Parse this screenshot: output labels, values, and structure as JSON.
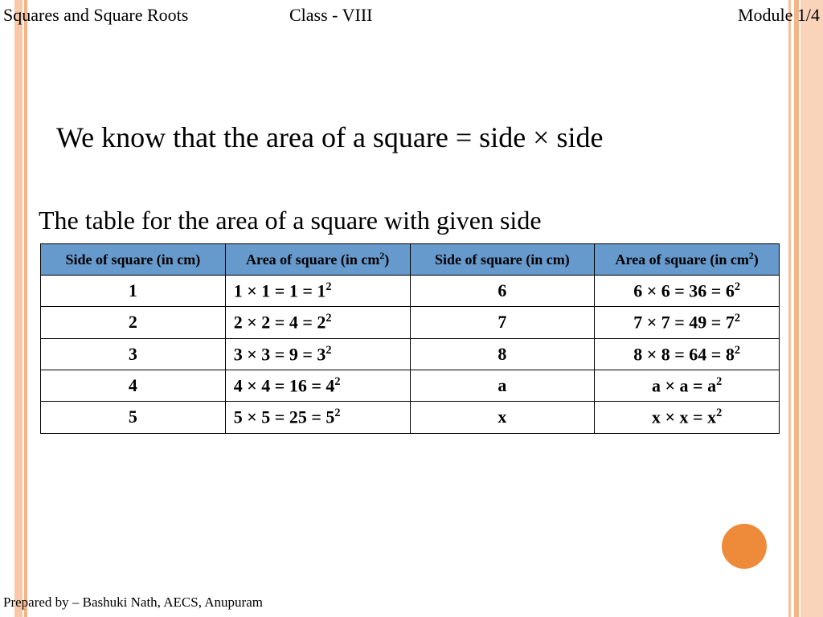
{
  "header": {
    "left": "Squares and Square Roots",
    "center": "Class - VIII",
    "right": "Module 1/4"
  },
  "main_line": "We know that the area of a square = side × side",
  "sub_line": "The table for the area of a square with given side",
  "footer": "Prepared by – Bashuki Nath, AECS, Anupuram",
  "colors": {
    "header_bg": "#6699cc",
    "stripe_light": "#f9d4bb",
    "stripe_mid": "#f8c8a8",
    "stripe_dark": "#f5b488",
    "dot": "#ed8b3a",
    "page_bg": "#ffffff",
    "text": "#000000",
    "border": "#000000"
  },
  "table": {
    "type": "table",
    "header_bg": "#6699cc",
    "header_fontsize": 18,
    "cell_fontsize": 22,
    "border_color": "#000000",
    "columns": [
      {
        "label": "Side of square (in cm)",
        "align": "center"
      },
      {
        "label_html": "Area of square (in cm<sup>2</sup>)",
        "align": "left"
      },
      {
        "label": "Side of square (in cm)",
        "align": "center"
      },
      {
        "label_html": "Area of square (in cm<sup>2</sup>)",
        "align": "center"
      }
    ],
    "rows": [
      [
        "1",
        "1 × 1 = 1 = 1<sup>2</sup>",
        "6",
        "6 × 6 = 36 = 6<sup>2</sup>"
      ],
      [
        "2",
        "2 × 2 = 4 = 2<sup>2</sup>",
        "7",
        "7 × 7 = 49 = 7<sup>2</sup>"
      ],
      [
        "3",
        "3 × 3 = 9 = 3<sup>2</sup>",
        "8",
        "8 × 8 = 64 = 8<sup>2</sup>"
      ],
      [
        "4",
        "4 × 4 = 16 = 4<sup>2</sup>",
        "a",
        "a × a = a<sup>2</sup>"
      ],
      [
        "5",
        "5 × 5 = 25 = 5<sup>2</sup>",
        "x",
        "x × x = x<sup>2</sup>"
      ]
    ],
    "col_align": [
      "center",
      "left",
      "center",
      "center"
    ]
  }
}
